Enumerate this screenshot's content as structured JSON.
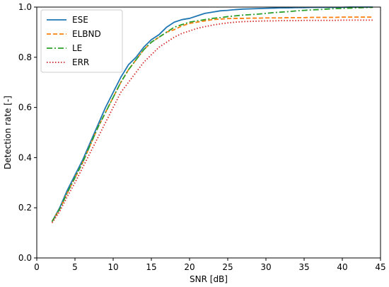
{
  "chart_data": {
    "type": "line",
    "title": "",
    "xlabel": "SNR [dB]",
    "ylabel": "Detection rate [-]",
    "xlim": [
      0,
      45
    ],
    "ylim": [
      0,
      1.0
    ],
    "xticks": [
      "0",
      "5",
      "10",
      "15",
      "20",
      "25",
      "30",
      "35",
      "40",
      "45"
    ],
    "yticks": [
      "0.0",
      "0.2",
      "0.4",
      "0.6",
      "0.8",
      "1.0"
    ],
    "grid": false,
    "legend_position": "top-left",
    "x": [
      2,
      3,
      4,
      5,
      6,
      7,
      8,
      9,
      10,
      11,
      12,
      13,
      14,
      15,
      16,
      17,
      18,
      19,
      20,
      21,
      22,
      23,
      24,
      25,
      26,
      27,
      28,
      29,
      30,
      31,
      32,
      33,
      34,
      35,
      36,
      37,
      38,
      39,
      40,
      41,
      42,
      43,
      44
    ],
    "series": [
      {
        "name": "ESE",
        "color": "#1f77b4",
        "dash": "solid",
        "values": [
          0.145,
          0.2,
          0.27,
          0.33,
          0.39,
          0.46,
          0.53,
          0.6,
          0.66,
          0.72,
          0.77,
          0.8,
          0.84,
          0.87,
          0.89,
          0.92,
          0.94,
          0.95,
          0.955,
          0.965,
          0.975,
          0.98,
          0.985,
          0.987,
          0.99,
          0.992,
          0.993,
          0.994,
          0.995,
          0.996,
          0.997,
          0.997,
          0.998,
          0.998,
          0.999,
          0.999,
          0.999,
          0.999,
          0.999,
          1.0,
          1.0,
          1.0,
          1.0
        ]
      },
      {
        "name": "ELBND",
        "color": "#ff7f0e",
        "dash": "dashed",
        "values": [
          0.145,
          0.195,
          0.26,
          0.32,
          0.38,
          0.45,
          0.52,
          0.58,
          0.64,
          0.7,
          0.75,
          0.79,
          0.83,
          0.86,
          0.88,
          0.9,
          0.91,
          0.925,
          0.935,
          0.94,
          0.945,
          0.95,
          0.952,
          0.954,
          0.955,
          0.955,
          0.956,
          0.956,
          0.957,
          0.957,
          0.957,
          0.958,
          0.958,
          0.958,
          0.959,
          0.959,
          0.959,
          0.959,
          0.96,
          0.96,
          0.96,
          0.96,
          0.96
        ]
      },
      {
        "name": "LE",
        "color": "#2ca02c",
        "dash": "dashdot",
        "values": [
          0.145,
          0.195,
          0.26,
          0.32,
          0.38,
          0.45,
          0.52,
          0.58,
          0.64,
          0.7,
          0.75,
          0.79,
          0.83,
          0.86,
          0.88,
          0.9,
          0.92,
          0.93,
          0.94,
          0.945,
          0.95,
          0.955,
          0.958,
          0.962,
          0.965,
          0.968,
          0.97,
          0.972,
          0.975,
          0.978,
          0.98,
          0.982,
          0.985,
          0.987,
          0.989,
          0.99,
          0.992,
          0.994,
          0.995,
          0.996,
          0.997,
          0.998,
          0.999
        ]
      },
      {
        "name": "ERR",
        "color": "#d62728",
        "dash": "dotted",
        "values": [
          0.14,
          0.185,
          0.245,
          0.3,
          0.36,
          0.42,
          0.48,
          0.54,
          0.6,
          0.66,
          0.7,
          0.74,
          0.78,
          0.81,
          0.84,
          0.86,
          0.88,
          0.895,
          0.905,
          0.915,
          0.922,
          0.928,
          0.933,
          0.937,
          0.94,
          0.942,
          0.943,
          0.944,
          0.945,
          0.945,
          0.946,
          0.946,
          0.946,
          0.947,
          0.947,
          0.947,
          0.947,
          0.947,
          0.948,
          0.948,
          0.948,
          0.948,
          0.948
        ]
      }
    ]
  }
}
